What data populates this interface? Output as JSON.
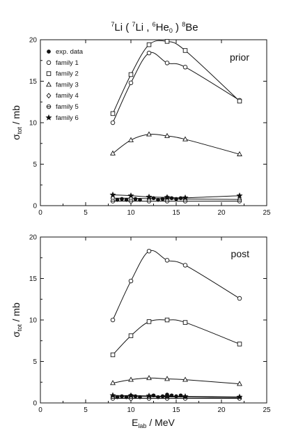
{
  "figure": {
    "title": {
      "pre": "7",
      "t1": "Li ( ",
      "sup2": "7",
      "t2": "Li , ",
      "sup3": "6",
      "t3": "He",
      "sub3": "0",
      "t4": " ) ",
      "sup4": "8",
      "t5": "Be"
    }
  },
  "ylabel": {
    "main": "σ",
    "sub": "tot",
    "rest": " / mb"
  },
  "xlabel": {
    "main": "E",
    "sub": "lab",
    "rest": " / MeV"
  },
  "legend": [
    {
      "marker": "filled-circle",
      "label": "exp. data"
    },
    {
      "marker": "circle",
      "label": "family 1"
    },
    {
      "marker": "square",
      "label": "family 2"
    },
    {
      "marker": "triangle",
      "label": "family 3"
    },
    {
      "marker": "diamond",
      "label": "family 4"
    },
    {
      "marker": "crossed-circle",
      "label": "family 5"
    },
    {
      "marker": "star",
      "label": "family 6"
    }
  ],
  "chart_data": [
    {
      "type": "line",
      "title": "prior",
      "xlim": [
        0,
        25
      ],
      "ylim": [
        0,
        20
      ],
      "xticks": [
        0,
        5,
        10,
        15,
        20,
        25
      ],
      "yticks": [
        0,
        5,
        10,
        15,
        20
      ],
      "series": [
        {
          "name": "exp. data",
          "marker": "filled-circle",
          "curve": false,
          "x": [
            8.5,
            9,
            9.5,
            10,
            10.5,
            11,
            12,
            12.5,
            13,
            13.5,
            14,
            14.5,
            15,
            15.5,
            16,
            22
          ],
          "y": [
            0.7,
            0.8,
            0.7,
            0.9,
            0.8,
            0.7,
            0.8,
            0.9,
            0.7,
            0.8,
            1.0,
            0.9,
            0.8,
            0.9,
            0.7,
            0.6
          ]
        },
        {
          "name": "family 1",
          "marker": "circle",
          "curve": true,
          "x": [
            8,
            10,
            12,
            14,
            16,
            22
          ],
          "y": [
            10.0,
            14.8,
            18.4,
            17.2,
            16.7,
            12.7
          ]
        },
        {
          "name": "family 2",
          "marker": "square",
          "curve": true,
          "x": [
            8,
            10,
            12,
            14,
            16,
            22
          ],
          "y": [
            11.1,
            15.8,
            19.4,
            19.8,
            18.7,
            12.6
          ]
        },
        {
          "name": "family 3",
          "marker": "triangle",
          "curve": true,
          "x": [
            8,
            10,
            12,
            14,
            16,
            22
          ],
          "y": [
            6.3,
            7.9,
            8.6,
            8.4,
            8.0,
            6.2
          ]
        },
        {
          "name": "family 4",
          "marker": "diamond",
          "curve": true,
          "x": [
            8,
            10,
            12,
            14,
            16,
            22
          ],
          "y": [
            0.9,
            0.9,
            0.85,
            0.85,
            0.8,
            0.75
          ]
        },
        {
          "name": "family 5",
          "marker": "crossed-circle",
          "curve": true,
          "x": [
            8,
            10,
            12,
            14,
            16,
            22
          ],
          "y": [
            0.55,
            0.55,
            0.55,
            0.55,
            0.55,
            0.55
          ]
        },
        {
          "name": "family 6",
          "marker": "star",
          "curve": true,
          "x": [
            8,
            10,
            12,
            14,
            16,
            22
          ],
          "y": [
            1.3,
            1.2,
            1.05,
            1.0,
            0.95,
            1.2
          ]
        }
      ]
    },
    {
      "type": "line",
      "title": "post",
      "xlim": [
        0,
        25
      ],
      "ylim": [
        0,
        20
      ],
      "xticks": [
        0,
        5,
        10,
        15,
        20,
        25
      ],
      "yticks": [
        0,
        5,
        10,
        15,
        20
      ],
      "series": [
        {
          "name": "exp. data",
          "marker": "filled-circle",
          "curve": false,
          "x": [
            8.5,
            9,
            9.5,
            10,
            10.5,
            11,
            12,
            12.5,
            13,
            13.5,
            14,
            14.5,
            15,
            15.5,
            16,
            22
          ],
          "y": [
            0.7,
            0.8,
            0.7,
            0.9,
            0.8,
            0.7,
            0.8,
            0.9,
            0.7,
            0.8,
            1.0,
            0.9,
            0.8,
            0.9,
            0.7,
            0.6
          ]
        },
        {
          "name": "family 1",
          "marker": "circle",
          "curve": true,
          "x": [
            8,
            10,
            12,
            14,
            16,
            22
          ],
          "y": [
            10.0,
            14.7,
            18.3,
            17.2,
            16.6,
            12.6
          ]
        },
        {
          "name": "family 2",
          "marker": "square",
          "curve": true,
          "x": [
            8,
            10,
            12,
            14,
            16,
            22
          ],
          "y": [
            5.8,
            8.1,
            9.8,
            10.0,
            9.7,
            7.1
          ]
        },
        {
          "name": "family 3",
          "marker": "triangle",
          "curve": true,
          "x": [
            8,
            10,
            12,
            14,
            16,
            22
          ],
          "y": [
            2.4,
            2.8,
            3.0,
            2.9,
            2.8,
            2.3
          ]
        },
        {
          "name": "family 4",
          "marker": "diamond",
          "curve": true,
          "x": [
            8,
            10,
            12,
            14,
            16,
            22
          ],
          "y": [
            0.75,
            0.75,
            0.75,
            0.72,
            0.7,
            0.65
          ]
        },
        {
          "name": "family 5",
          "marker": "crossed-circle",
          "curve": true,
          "x": [
            8,
            10,
            12,
            14,
            16,
            22
          ],
          "y": [
            0.55,
            0.55,
            0.55,
            0.55,
            0.55,
            0.55
          ]
        },
        {
          "name": "family 6",
          "marker": "star",
          "curve": true,
          "x": [
            8,
            10,
            12,
            14,
            16,
            22
          ],
          "y": [
            0.9,
            0.88,
            0.85,
            0.8,
            0.78,
            0.72
          ]
        }
      ]
    }
  ]
}
